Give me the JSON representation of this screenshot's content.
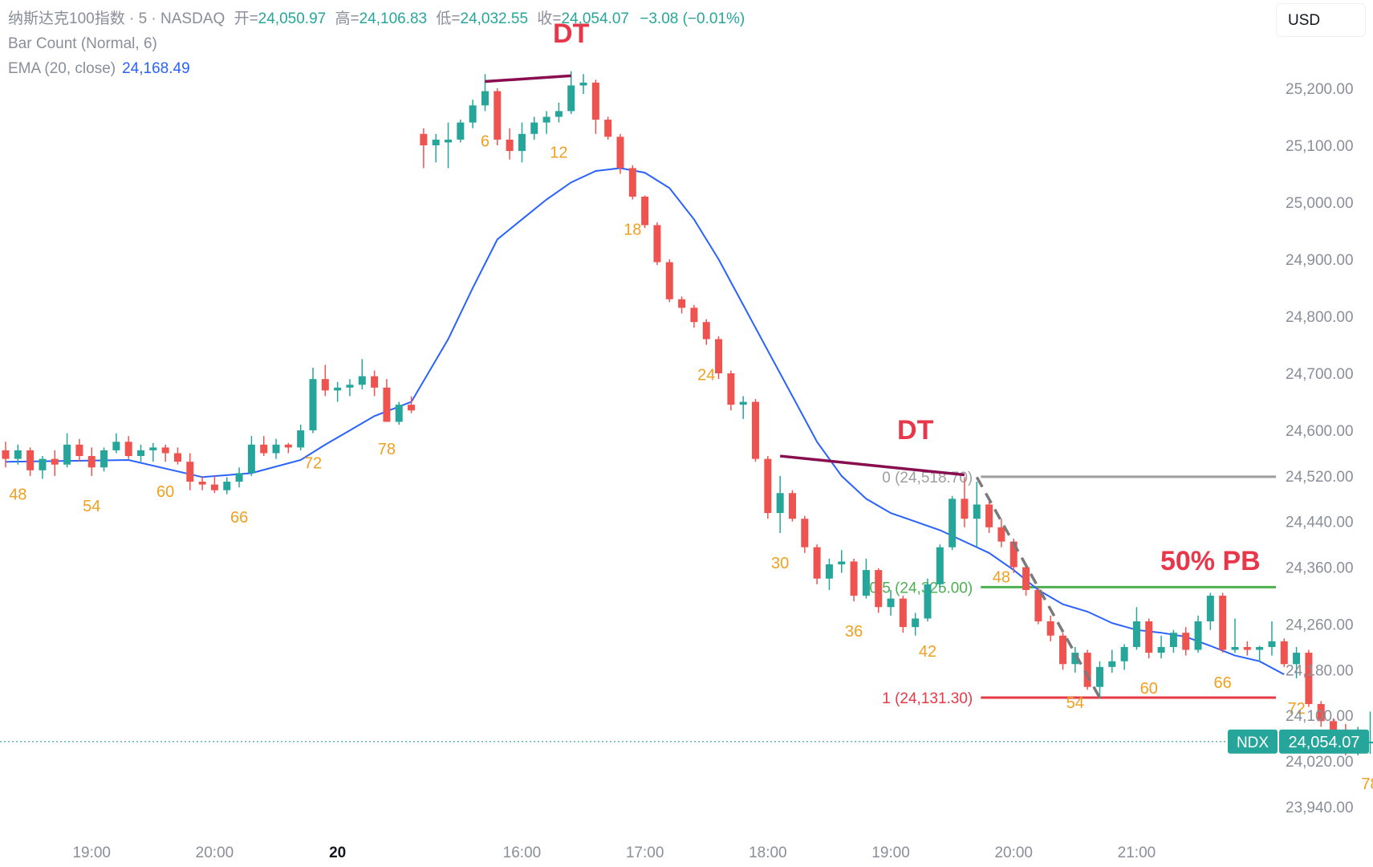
{
  "legend": {
    "title": "纳斯达克100指数 · 5 · NASDAQ",
    "open_label": "开=",
    "open": "24,050.97",
    "high_label": "高=",
    "high": "24,106.83",
    "low_label": "低=",
    "low": "24,032.55",
    "close_label": "收=",
    "close": "24,054.07",
    "change": "−3.08 (−0.01%)",
    "bar_count": "Bar Count (Normal, 6)",
    "ema_label": "EMA (20, close)",
    "ema_value": "24,168.49"
  },
  "currency_button": "USD",
  "price_tag": {
    "symbol": "NDX",
    "value": "24,054.07",
    "price": 24054.07
  },
  "colors": {
    "up": "#26a69a",
    "down": "#ef5350",
    "ema": "#2962ff",
    "count": "#f0a020",
    "annotation": "#e8374a",
    "fib0": "#9e9e9e",
    "fib05": "#4caf50",
    "fib1": "#e53945",
    "trendline": "#880e4f",
    "legend_text": "#8a8e99"
  },
  "chart_data": {
    "type": "candlestick",
    "title": "纳斯达克100指数 · 5 · NASDAQ",
    "y_ticks": [
      23940,
      24020,
      24100,
      24180,
      24260,
      24360,
      24440,
      24520,
      24600,
      24700,
      24800,
      24900,
      25000,
      25100,
      25200
    ],
    "y_tick_labels": [
      "23,940.00",
      "24,020.00",
      "24,100.00",
      "24,180.00",
      "24,260.00",
      "24,360.00",
      "24,440.00",
      "24,520.00",
      "24,600.00",
      "24,700.00",
      "24,800.00",
      "24,900.00",
      "25,000.00",
      "25,100.00",
      "25,200.00"
    ],
    "ylim": [
      23880,
      25300
    ],
    "x_ticks": [
      {
        "bar": 7,
        "label": "19:00"
      },
      {
        "bar": 17,
        "label": "20:00"
      },
      {
        "bar": 27,
        "label": "20",
        "bold": true
      },
      {
        "bar": 42,
        "label": "16:00"
      },
      {
        "bar": 52,
        "label": "17:00"
      },
      {
        "bar": 62,
        "label": "18:00"
      },
      {
        "bar": 72,
        "label": "19:00"
      },
      {
        "bar": 82,
        "label": "20:00"
      },
      {
        "bar": 92,
        "label": "21:00"
      }
    ],
    "candles": [
      [
        24565,
        24580,
        24535,
        24550
      ],
      [
        24550,
        24575,
        24540,
        24565
      ],
      [
        24565,
        24570,
        24520,
        24530
      ],
      [
        24530,
        24555,
        24515,
        24550
      ],
      [
        24550,
        24565,
        24520,
        24540
      ],
      [
        24540,
        24595,
        24535,
        24575
      ],
      [
        24575,
        24585,
        24545,
        24555
      ],
      [
        24555,
        24570,
        24520,
        24535
      ],
      [
        24535,
        24570,
        24528,
        24565
      ],
      [
        24565,
        24595,
        24560,
        24580
      ],
      [
        24580,
        24590,
        24550,
        24555
      ],
      [
        24555,
        24575,
        24545,
        24565
      ],
      [
        24565,
        24578,
        24545,
        24570
      ],
      [
        24570,
        24575,
        24545,
        24560
      ],
      [
        24560,
        24570,
        24540,
        24545
      ],
      [
        24545,
        24560,
        24495,
        24510
      ],
      [
        24510,
        24520,
        24495,
        24505
      ],
      [
        24505,
        24520,
        24490,
        24495
      ],
      [
        24495,
        24518,
        24488,
        24510
      ],
      [
        24510,
        24535,
        24500,
        24525
      ],
      [
        24525,
        24590,
        24520,
        24575
      ],
      [
        24575,
        24590,
        24555,
        24560
      ],
      [
        24560,
        24585,
        24550,
        24575
      ],
      [
        24575,
        24578,
        24560,
        24570
      ],
      [
        24570,
        24610,
        24565,
        24600
      ],
      [
        24600,
        24710,
        24595,
        24690
      ],
      [
        24690,
        24715,
        24660,
        24670
      ],
      [
        24670,
        24685,
        24650,
        24675
      ],
      [
        24675,
        24690,
        24660,
        24680
      ],
      [
        24680,
        24725,
        24672,
        24695
      ],
      [
        24695,
        24705,
        24660,
        24675
      ],
      [
        24675,
        24690,
        24620,
        24615
      ],
      [
        24615,
        24650,
        24610,
        24645
      ],
      [
        24645,
        24660,
        24630,
        24635
      ],
      [
        25120,
        25130,
        25060,
        25100
      ],
      [
        25100,
        25120,
        25070,
        25110
      ],
      [
        25105,
        25140,
        25060,
        25110
      ],
      [
        25110,
        25145,
        25105,
        25140
      ],
      [
        25140,
        25180,
        25130,
        25170
      ],
      [
        25170,
        25225,
        25160,
        25195
      ],
      [
        25195,
        25200,
        25100,
        25110
      ],
      [
        25110,
        25130,
        25075,
        25090
      ],
      [
        25090,
        25140,
        25070,
        25120
      ],
      [
        25120,
        25150,
        25110,
        25140
      ],
      [
        25140,
        25160,
        25120,
        25150
      ],
      [
        25150,
        25175,
        25140,
        25160
      ],
      [
        25160,
        25230,
        25155,
        25205
      ],
      [
        25205,
        25225,
        25190,
        25210
      ],
      [
        25210,
        25215,
        25120,
        25145
      ],
      [
        25145,
        25150,
        25110,
        25115
      ],
      [
        25115,
        25120,
        25050,
        25060
      ],
      [
        25060,
        25065,
        25005,
        25010
      ],
      [
        25010,
        25012,
        24955,
        24960
      ],
      [
        24960,
        24965,
        24890,
        24895
      ],
      [
        24895,
        24900,
        24825,
        24830
      ],
      [
        24830,
        24835,
        24805,
        24815
      ],
      [
        24815,
        24820,
        24780,
        24790
      ],
      [
        24790,
        24795,
        24750,
        24760
      ],
      [
        24760,
        24765,
        24690,
        24700
      ],
      [
        24700,
        24705,
        24635,
        24645
      ],
      [
        24645,
        24660,
        24620,
        24650
      ],
      [
        24650,
        24655,
        24545,
        24550
      ],
      [
        24550,
        24555,
        24445,
        24455
      ],
      [
        24455,
        24520,
        24420,
        24490
      ],
      [
        24490,
        24495,
        24440,
        24445
      ],
      [
        24445,
        24450,
        24385,
        24395
      ],
      [
        24395,
        24400,
        24330,
        24340
      ],
      [
        24340,
        24375,
        24320,
        24365
      ],
      [
        24365,
        24390,
        24350,
        24370
      ],
      [
        24370,
        24375,
        24300,
        24310
      ],
      [
        24310,
        24375,
        24305,
        24355
      ],
      [
        24355,
        24358,
        24280,
        24290
      ],
      [
        24290,
        24320,
        24275,
        24305
      ],
      [
        24305,
        24310,
        24245,
        24255
      ],
      [
        24255,
        24280,
        24240,
        24270
      ],
      [
        24270,
        24340,
        24265,
        24330
      ],
      [
        24330,
        24400,
        24320,
        24395
      ],
      [
        24395,
        24485,
        24390,
        24480
      ],
      [
        24480,
        24518,
        24430,
        24445
      ],
      [
        24445,
        24510,
        24395,
        24470
      ],
      [
        24470,
        24475,
        24420,
        24430
      ],
      [
        24430,
        24445,
        24395,
        24405
      ],
      [
        24405,
        24410,
        24350,
        24360
      ],
      [
        24360,
        24365,
        24310,
        24320
      ],
      [
        24320,
        24325,
        24260,
        24265
      ],
      [
        24265,
        24275,
        24230,
        24240
      ],
      [
        24240,
        24245,
        24180,
        24190
      ],
      [
        24190,
        24220,
        24175,
        24210
      ],
      [
        24210,
        24215,
        24145,
        24150
      ],
      [
        24150,
        24195,
        24130,
        24185
      ],
      [
        24185,
        24215,
        24175,
        24195
      ],
      [
        24195,
        24225,
        24180,
        24220
      ],
      [
        24220,
        24290,
        24215,
        24265
      ],
      [
        24265,
        24270,
        24200,
        24210
      ],
      [
        24210,
        24240,
        24200,
        24220
      ],
      [
        24220,
        24250,
        24210,
        24245
      ],
      [
        24245,
        24255,
        24205,
        24215
      ],
      [
        24215,
        24275,
        24210,
        24265
      ],
      [
        24265,
        24315,
        24250,
        24310
      ],
      [
        24310,
        24315,
        24210,
        24215
      ],
      [
        24215,
        24270,
        24210,
        24220
      ],
      [
        24220,
        24230,
        24205,
        24215
      ],
      [
        24215,
        24222,
        24195,
        24220
      ],
      [
        24220,
        24265,
        24205,
        24230
      ],
      [
        24230,
        24235,
        24185,
        24190
      ],
      [
        24190,
        24220,
        24165,
        24210
      ],
      [
        24210,
        24215,
        24115,
        24120
      ],
      [
        24120,
        24125,
        24080,
        24090
      ],
      [
        24090,
        24095,
        24060,
        24075
      ],
      [
        24075,
        24085,
        24030,
        24035
      ],
      [
        24035,
        24080,
        24030,
        24060
      ],
      [
        24050.97,
        24106.83,
        24032.55,
        24054.07
      ]
    ],
    "ema": [
      [
        0,
        24545
      ],
      [
        10,
        24548
      ],
      [
        16,
        24518
      ],
      [
        20,
        24525
      ],
      [
        24,
        24548
      ],
      [
        26,
        24575
      ],
      [
        28,
        24600
      ],
      [
        30,
        24625
      ],
      [
        33,
        24650
      ],
      [
        36,
        24760
      ],
      [
        38,
        24850
      ],
      [
        40,
        24935
      ],
      [
        42,
        24970
      ],
      [
        44,
        25005
      ],
      [
        46,
        25035
      ],
      [
        48,
        25055
      ],
      [
        50,
        25060
      ],
      [
        52,
        25052
      ],
      [
        54,
        25025
      ],
      [
        56,
        24970
      ],
      [
        58,
        24900
      ],
      [
        60,
        24820
      ],
      [
        62,
        24740
      ],
      [
        64,
        24660
      ],
      [
        66,
        24580
      ],
      [
        68,
        24520
      ],
      [
        70,
        24480
      ],
      [
        72,
        24455
      ],
      [
        74,
        24440
      ],
      [
        76,
        24425
      ],
      [
        78,
        24405
      ],
      [
        80,
        24385
      ],
      [
        82,
        24355
      ],
      [
        84,
        24320
      ],
      [
        86,
        24295
      ],
      [
        88,
        24282
      ],
      [
        90,
        24262
      ],
      [
        92,
        24250
      ],
      [
        94,
        24245
      ],
      [
        96,
        24238
      ],
      [
        98,
        24222
      ],
      [
        100,
        24205
      ],
      [
        102,
        24195
      ],
      [
        104,
        24172
      ]
    ],
    "bar_counts": [
      {
        "bar": 1,
        "label": "48"
      },
      {
        "bar": 7,
        "label": "54"
      },
      {
        "bar": 13,
        "label": "60"
      },
      {
        "bar": 19,
        "label": "66"
      },
      {
        "bar": 25,
        "label": "72"
      },
      {
        "bar": 31,
        "label": "78"
      },
      {
        "bar": 39,
        "label": "6"
      },
      {
        "bar": 45,
        "label": "12"
      },
      {
        "bar": 51,
        "label": "18"
      },
      {
        "bar": 57,
        "label": "24"
      },
      {
        "bar": 63,
        "label": "30"
      },
      {
        "bar": 69,
        "label": "36"
      },
      {
        "bar": 75,
        "label": "42"
      },
      {
        "bar": 81,
        "label": "48"
      },
      {
        "bar": 87,
        "label": "54"
      },
      {
        "bar": 93,
        "label": "60"
      },
      {
        "bar": 99,
        "label": "66"
      },
      {
        "bar": 105,
        "label": "72"
      },
      {
        "bar": 111,
        "label": "78"
      }
    ],
    "annotations": [
      {
        "text": "DT",
        "bar": 46,
        "price": 25280
      },
      {
        "text": "DT",
        "bar": 74,
        "price": 24585
      },
      {
        "text": "50% PB",
        "bar": 98,
        "price": 24355
      }
    ],
    "trendlines": [
      {
        "from": [
          39,
          25212
        ],
        "to": [
          46,
          25222
        ]
      },
      {
        "from": [
          63,
          24555
        ],
        "to": [
          78,
          24522
        ]
      }
    ],
    "dashed_line": {
      "from": [
        79,
        24518
      ],
      "to": [
        89,
        24131
      ]
    },
    "fib_levels": [
      {
        "ratio_label": "0 (24,518.70)",
        "price": 24518.7,
        "role": "fib0"
      },
      {
        "ratio_label": "0.5 (24,325.00)",
        "price": 24325.0,
        "role": "fib05"
      },
      {
        "ratio_label": "1 (24,131.30)",
        "price": 24131.3,
        "role": "fib1"
      }
    ]
  }
}
